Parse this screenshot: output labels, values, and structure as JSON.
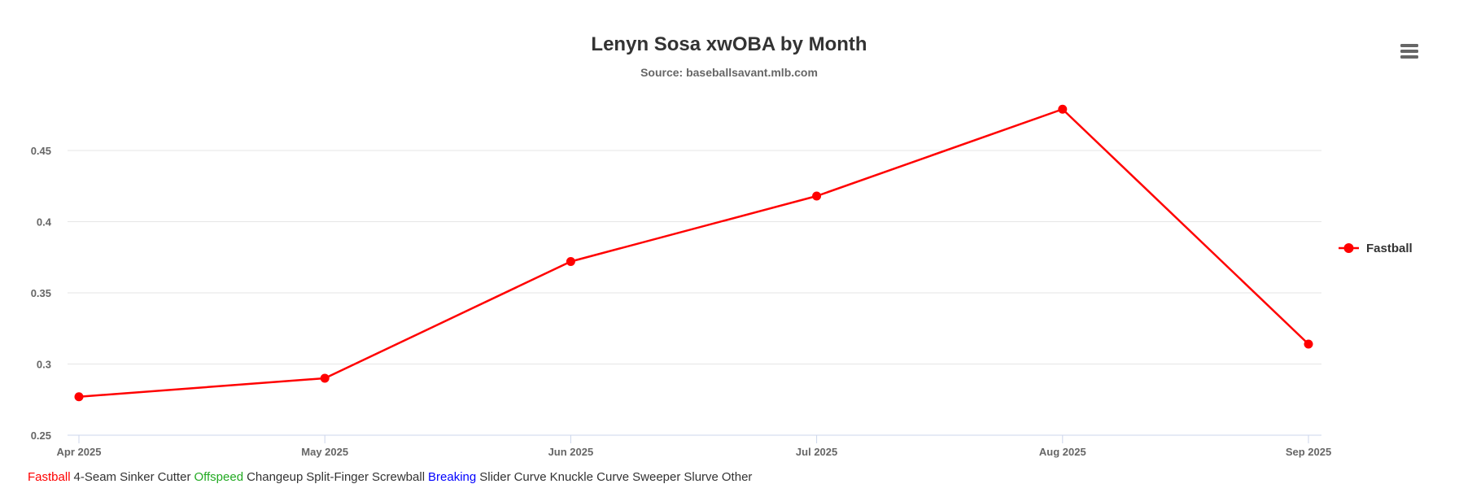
{
  "chart_data": {
    "type": "line",
    "title": "Lenyn Sosa xwOBA by Month",
    "subtitle": "Source: baseballsavant.mlb.com",
    "x": [
      "Apr 2025",
      "May 2025",
      "Jun 2025",
      "Jul 2025",
      "Aug 2025",
      "Sep 2025"
    ],
    "series": [
      {
        "name": "Fastball",
        "color": "#ff0000",
        "values": [
          0.277,
          0.29,
          0.372,
          0.418,
          0.479,
          0.314
        ]
      }
    ],
    "ylim": [
      0.25,
      0.48
    ],
    "yticks": [
      0.25,
      0.3,
      0.35,
      0.4,
      0.45
    ],
    "ytick_labels": [
      "0.25",
      "0.3",
      "0.35",
      "0.4",
      "0.45"
    ],
    "grid": true,
    "legend_position": "right"
  },
  "menu_icon": "hamburger-menu-icon",
  "pitch_legend": [
    {
      "label": "Fastball",
      "color": "#ff0000"
    },
    {
      "label": "4-Seam",
      "color": "#333333"
    },
    {
      "label": "Sinker",
      "color": "#333333"
    },
    {
      "label": "Cutter",
      "color": "#333333"
    },
    {
      "label": "Offspeed",
      "color": "#22aa22"
    },
    {
      "label": "Changeup",
      "color": "#333333"
    },
    {
      "label": "Split-Finger",
      "color": "#333333"
    },
    {
      "label": "Screwball",
      "color": "#333333"
    },
    {
      "label": "Breaking",
      "color": "#0000ff"
    },
    {
      "label": "Slider",
      "color": "#333333"
    },
    {
      "label": "Curve",
      "color": "#333333"
    },
    {
      "label": "Knuckle Curve",
      "color": "#333333"
    },
    {
      "label": "Sweeper",
      "color": "#333333"
    },
    {
      "label": "Slurve",
      "color": "#333333"
    },
    {
      "label": "Other",
      "color": "#333333"
    }
  ]
}
